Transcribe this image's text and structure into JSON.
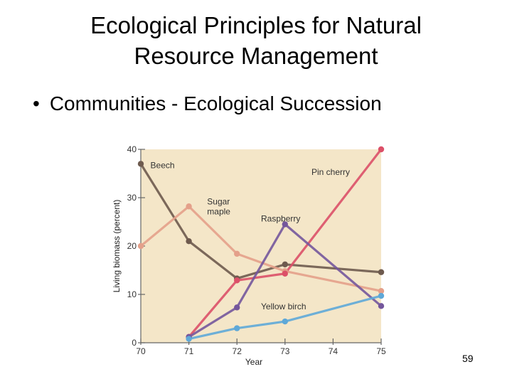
{
  "slide": {
    "title_line1": "Ecological Principles for Natural",
    "title_line2": "Resource Management",
    "bullet_symbol": "•",
    "bullet_text": "Communities - Ecological Succession",
    "page_number": "59"
  },
  "chart_data": {
    "type": "line",
    "title": "",
    "xlabel": "Year",
    "ylabel": "Living biomass (percent)",
    "xlim": [
      70,
      75
    ],
    "ylim": [
      0,
      40
    ],
    "x_ticks": [
      70,
      71,
      72,
      73,
      74,
      75
    ],
    "y_ticks": [
      0,
      10,
      20,
      30,
      40
    ],
    "grid": false,
    "plot_background": "#f4e6c8",
    "series": [
      {
        "name": "Beech",
        "color": "#6e5a4e",
        "x": [
          70,
          71,
          72,
          73,
          75
        ],
        "values": [
          37,
          21,
          13.3,
          16.2,
          14.6
        ]
      },
      {
        "name": "Sugar maple",
        "label_lines": [
          "Sugar",
          "maple"
        ],
        "color": "#e4a08a",
        "x": [
          70,
          71,
          72,
          73,
          75
        ],
        "values": [
          20,
          28.2,
          18.4,
          14.8,
          10.7
        ]
      },
      {
        "name": "Pin cherry",
        "color": "#dc5068",
        "x": [
          71,
          72,
          73,
          75
        ],
        "values": [
          1.2,
          12.9,
          14.3,
          40
        ]
      },
      {
        "name": "Raspberry",
        "color": "#74569c",
        "x": [
          71,
          72,
          73,
          75
        ],
        "values": [
          1.2,
          7.3,
          24.5,
          7.6
        ]
      },
      {
        "name": "Yellow birch",
        "color": "#5ea8d8",
        "x": [
          71,
          72,
          73,
          75
        ],
        "values": [
          0.8,
          3,
          4.4,
          9.7
        ]
      }
    ]
  }
}
